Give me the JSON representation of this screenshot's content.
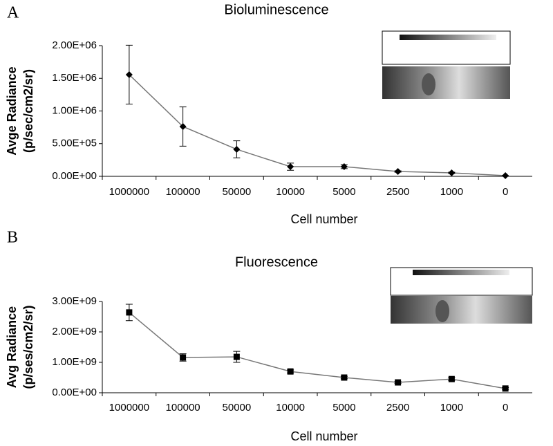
{
  "chart_data": [
    {
      "type": "line",
      "panel_label": "A",
      "title": "Bioluminescence",
      "ylabel": [
        "Avge Radiance",
        "(p/sec/cm2/sr)"
      ],
      "xlabel": "Cell number",
      "categories": [
        "1000000",
        "100000",
        "50000",
        "10000",
        "5000",
        "2500",
        "1000",
        "0"
      ],
      "values": [
        1556000,
        762000,
        413000,
        148000,
        148000,
        74000,
        53000,
        10000
      ],
      "errors": [
        450000,
        300000,
        130000,
        55000,
        30000,
        10000,
        10000,
        0
      ],
      "marker": "diamond",
      "color": "#000000",
      "line_color": "#777777",
      "ylim": [
        0,
        2000000
      ],
      "yticks": [
        {
          "value": 0,
          "label": "0.00E+00"
        },
        {
          "value": 500000,
          "label": "5.00E+05"
        },
        {
          "value": 1000000,
          "label": "1.00E+06"
        },
        {
          "value": 1500000,
          "label": "1.50E+06"
        },
        {
          "value": 2000000,
          "label": "2.00E+06"
        }
      ],
      "grid": false
    },
    {
      "type": "line",
      "panel_label": "B",
      "title": "Fluorescence",
      "ylabel": [
        "Avg Radiance",
        "(p/ses/cm2/sr)"
      ],
      "xlabel": "Cell number",
      "categories": [
        "1000000",
        "100000",
        "50000",
        "10000",
        "5000",
        "2500",
        "1000",
        "0"
      ],
      "values": [
        2640000000,
        1160000000,
        1180000000,
        700000000,
        500000000,
        340000000,
        450000000,
        140000000
      ],
      "errors": [
        270000000,
        120000000,
        180000000,
        50000000,
        40000000,
        30000000,
        50000000,
        30000000
      ],
      "marker": "square",
      "color": "#000000",
      "line_color": "#777777",
      "ylim": [
        0,
        3000000000
      ],
      "yticks": [
        {
          "value": 0,
          "label": "0.00E+00"
        },
        {
          "value": 1000000000,
          "label": "1.00E+09"
        },
        {
          "value": 2000000000,
          "label": "2.00E+09"
        },
        {
          "value": 3000000000,
          "label": "3.00E+09"
        }
      ],
      "grid": false
    }
  ]
}
